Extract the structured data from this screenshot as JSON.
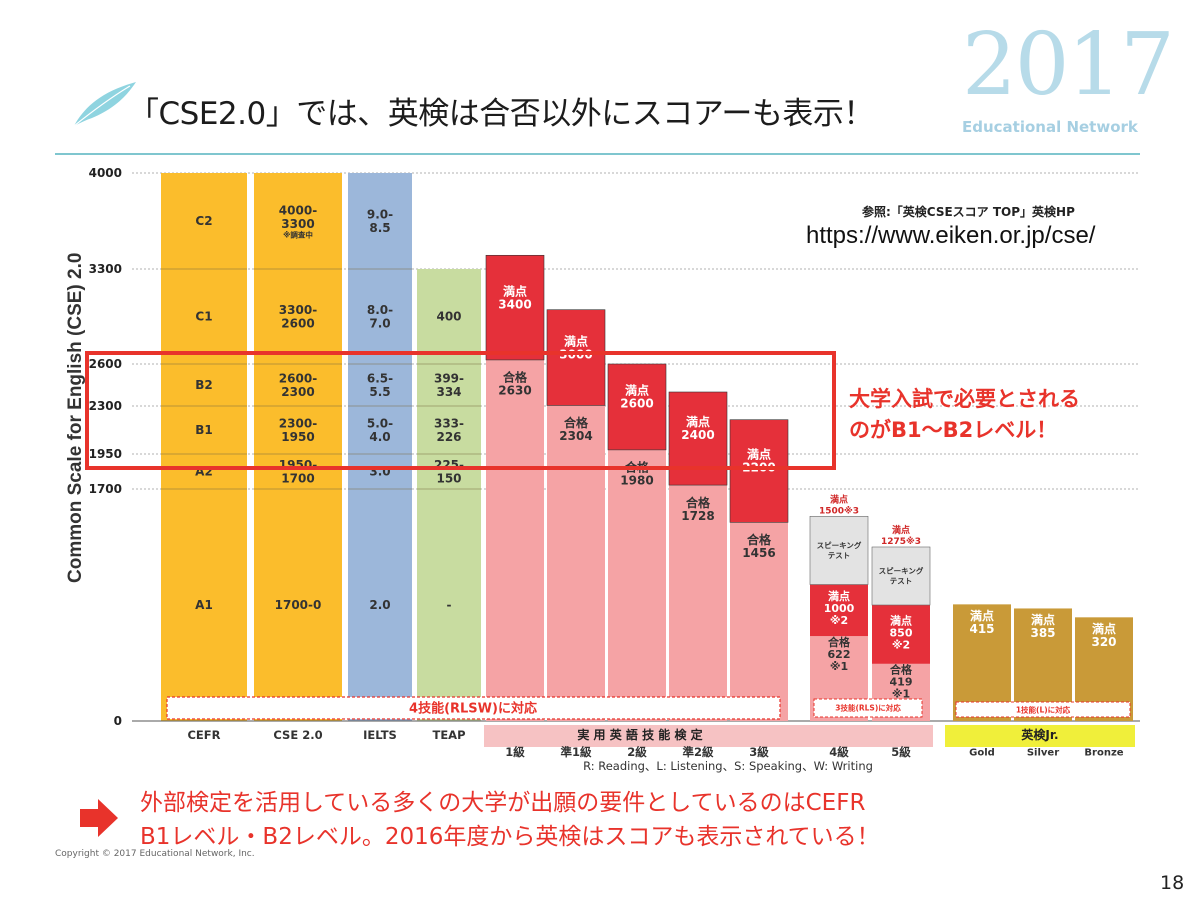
{
  "slide": {
    "title": "「CSE2.0」では、英検は合否以外にスコアーも表示！",
    "year": "2017",
    "org": "Educational Network",
    "reference": "参照:「英検CSEスコア TOP」英検HP",
    "url": "https://www.eiken.or.jp/cse/",
    "callout_lines": [
      "大学入試で必要とされる",
      "のがB1〜B2レベル！"
    ],
    "bottom_lines": [
      "外部検定を活用している多くの大学が出願の要件としているのはCEFR",
      "B1レベル・B2レベル。2016年度から英検はスコアも表示されている！"
    ],
    "copyright": "Copyright ©  2017  Educational Network, Inc.",
    "page_number": "18"
  },
  "colors": {
    "cefr": "#fbbd2c",
    "ielts": "#9cb7da",
    "teap": "#c8dca0",
    "eiken_full": "#e5303a",
    "eiken_pass": "#f5a3a5",
    "speaking": "#e3e3e3",
    "junior": "#c99a38",
    "junior_bar": "#f0ef3a",
    "highlight": "#e8332b",
    "accent": "#7fc6cf"
  },
  "chart_data": {
    "type": "bar",
    "ylabel": "Common Scale for English (CSE) 2.0",
    "ylim": [
      0,
      4000
    ],
    "yticks": [
      0,
      1700,
      1950,
      2300,
      2600,
      3300,
      4000
    ],
    "columns": {
      "cefr": {
        "label": "CEFR",
        "levels": [
          {
            "name": "C2",
            "from": 3300,
            "to": 4000
          },
          {
            "name": "C1",
            "from": 2600,
            "to": 3300
          },
          {
            "name": "B2",
            "from": 2300,
            "to": 2600
          },
          {
            "name": "B1",
            "from": 1950,
            "to": 2300
          },
          {
            "name": "A2",
            "from": 1700,
            "to": 1950
          },
          {
            "name": "A1",
            "from": 0,
            "to": 1700
          }
        ]
      },
      "cse": {
        "label": "CSE 2.0",
        "cells": [
          {
            "text": "4000-\n3300",
            "note": "※調査中",
            "from": 3300,
            "to": 4000
          },
          {
            "text": "3300-\n2600",
            "from": 2600,
            "to": 3300
          },
          {
            "text": "2600-\n2300",
            "from": 2300,
            "to": 2600
          },
          {
            "text": "2300-\n1950",
            "from": 1950,
            "to": 2300
          },
          {
            "text": "1950-\n1700",
            "from": 1700,
            "to": 1950
          },
          {
            "text": "1700-0",
            "from": 0,
            "to": 1700
          }
        ]
      },
      "ielts": {
        "label": "IELTS",
        "top": 4000,
        "cells": [
          {
            "text": "9.0-\n8.5",
            "from": 3300,
            "to": 4000
          },
          {
            "text": "8.0-\n7.0",
            "from": 2600,
            "to": 3300
          },
          {
            "text": "6.5-\n5.5",
            "from": 2300,
            "to": 2600
          },
          {
            "text": "5.0-\n4.0",
            "from": 1950,
            "to": 2300
          },
          {
            "text": "3.0",
            "from": 1700,
            "to": 1950
          },
          {
            "text": "2.0",
            "from": 0,
            "to": 1700
          }
        ]
      },
      "teap": {
        "label": "TEAP",
        "top": 3300,
        "cells": [
          {
            "text": "400",
            "from": 2600,
            "to": 3300
          },
          {
            "text": "399-\n334",
            "from": 2300,
            "to": 2600
          },
          {
            "text": "333-\n226",
            "from": 1950,
            "to": 2300
          },
          {
            "text": "225-\n150",
            "from": 1700,
            "to": 1950
          },
          {
            "text": "-",
            "from": 0,
            "to": 1700
          }
        ]
      }
    },
    "eiken": {
      "label": "実 用 英 語 技 能 検 定",
      "full_label": "満点",
      "pass_label": "合格",
      "grades": [
        {
          "grade": "1級",
          "max": 3400,
          "pass": 2630
        },
        {
          "grade": "準1級",
          "max": 3000,
          "pass": 2304
        },
        {
          "grade": "2級",
          "max": 2600,
          "pass": 1980
        },
        {
          "grade": "準2級",
          "max": 2400,
          "pass": 1728
        },
        {
          "grade": "3級",
          "max": 2200,
          "pass": 1456
        },
        {
          "grade": "4級",
          "max": 1500,
          "max_note": "※3",
          "speaking_from": 1000,
          "rls_max": 1000,
          "rls_note": "※2",
          "pass": 622,
          "pass_note": "※1"
        },
        {
          "grade": "5級",
          "max": 1275,
          "max_note": "※3",
          "speaking_from": 850,
          "rls_max": 850,
          "rls_note": "※2",
          "pass": 419,
          "pass_note": "※1"
        }
      ],
      "speaking_label": "スピーキング\nテスト",
      "skills_note": "R: Reading、L: Listening、S: Speaking、W: Writing",
      "four_skill_label": "4技能(RLSW)に対応",
      "three_skill_label": "3技能(RLS)に対応"
    },
    "junior": {
      "label": "英検Jr.",
      "range_label": "1技能(L)に対応",
      "grades": [
        {
          "grade": "Gold",
          "max": 415
        },
        {
          "grade": "Silver",
          "max": 385
        },
        {
          "grade": "Bronze",
          "max": 320
        }
      ]
    },
    "highlight_range": [
      1950,
      2600
    ]
  }
}
